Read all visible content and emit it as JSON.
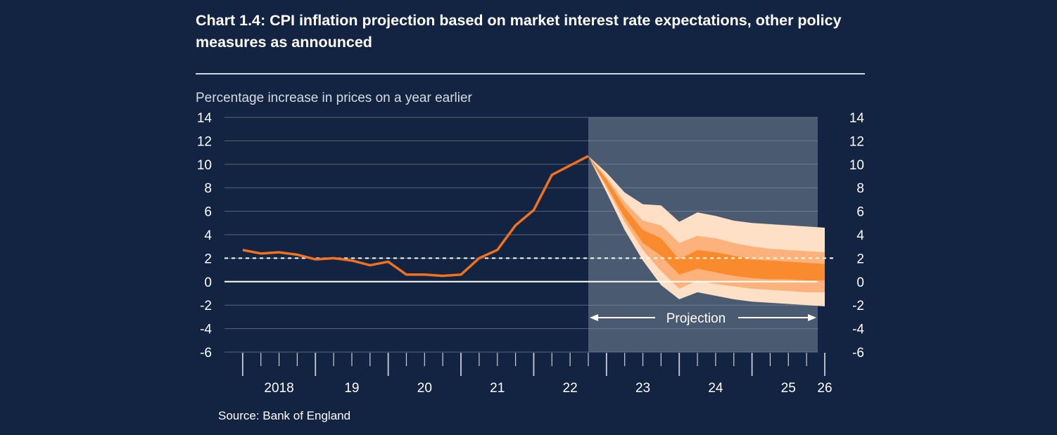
{
  "header": {
    "title": "Chart 1.4: CPI inflation projection based on market interest rate expectations, other policy measures as announced"
  },
  "ylabel": "Percentage increase in prices on a year earlier",
  "source": "Source: Bank of England",
  "chart_data": {
    "type": "area",
    "title": "Chart 1.4: CPI inflation projection based on market interest rate expectations, other policy measures as announced",
    "ylabel": "Percentage increase in prices on a year earlier",
    "xlabel": "",
    "ylim": [
      -6,
      14
    ],
    "y_ticks": [
      14,
      12,
      10,
      8,
      6,
      4,
      2,
      0,
      -2,
      -4,
      -6
    ],
    "x_tick_labels": [
      {
        "label": "2018",
        "x": 2018.5
      },
      {
        "label": "19",
        "x": 2019.5
      },
      {
        "label": "20",
        "x": 2020.5
      },
      {
        "label": "21",
        "x": 2021.5
      },
      {
        "label": "22",
        "x": 2022.5
      },
      {
        "label": "23",
        "x": 2023.5
      },
      {
        "label": "24",
        "x": 2024.5
      },
      {
        "label": "25",
        "x": 2025.5
      },
      {
        "label": "26",
        "x": 2026.0
      }
    ],
    "xlim": [
      2017.75,
      2026.0
    ],
    "inflation_target": 2,
    "projection_start": 2022.75,
    "projection_label": "Projection",
    "colors": {
      "background": "#132442",
      "projection_shade": "#4a5a70",
      "history_line": "#f2711c",
      "band_outer": "#fde0c6",
      "band_mid": "#fcb27a",
      "band_inner": "#f98a2e",
      "band_core": "#f57a0f",
      "grid": "#8b97aa"
    },
    "series": [
      {
        "name": "CPI inflation",
        "x": [
          2018.0,
          2018.25,
          2018.5,
          2018.75,
          2019.0,
          2019.25,
          2019.5,
          2019.75,
          2020.0,
          2020.25,
          2020.5,
          2020.75,
          2021.0,
          2021.25,
          2021.5,
          2021.75,
          2022.0,
          2022.25,
          2022.5,
          2022.75
        ],
        "values": [
          2.7,
          2.4,
          2.5,
          2.3,
          1.9,
          2.0,
          1.8,
          1.4,
          1.7,
          0.6,
          0.6,
          0.5,
          0.6,
          2.0,
          2.7,
          4.8,
          6.1,
          9.1,
          9.9,
          10.7
        ]
      }
    ],
    "fan_x": [
      2022.75,
      2023.0,
      2023.25,
      2023.5,
      2023.75,
      2024.0,
      2024.25,
      2024.5,
      2024.75,
      2025.0,
      2025.25,
      2025.5,
      2025.75,
      2026.0
    ],
    "fan_bands": [
      {
        "upper": [
          10.7,
          9.3,
          7.6,
          6.6,
          6.5,
          5.1,
          5.9,
          5.6,
          5.2,
          5.0,
          4.9,
          4.8,
          4.7,
          4.6
        ],
        "lower": [
          10.7,
          7.6,
          4.4,
          1.8,
          -0.3,
          -1.5,
          -0.9,
          -1.2,
          -1.5,
          -1.7,
          -1.8,
          -1.9,
          -2.0,
          -2.1
        ]
      },
      {
        "upper": [
          10.7,
          8.9,
          6.8,
          5.2,
          4.8,
          3.3,
          3.9,
          3.7,
          3.3,
          3.0,
          2.8,
          2.7,
          2.6,
          2.5
        ],
        "lower": [
          10.7,
          8.0,
          5.1,
          2.7,
          0.9,
          -0.6,
          0.1,
          -0.2,
          -0.4,
          -0.6,
          -0.7,
          -0.8,
          -0.9,
          -0.9
        ]
      },
      {
        "upper": [
          10.7,
          8.7,
          6.3,
          4.4,
          3.7,
          1.9,
          2.7,
          2.5,
          2.2,
          1.9,
          1.8,
          1.7,
          1.6,
          1.5
        ],
        "lower": [
          10.7,
          8.2,
          5.5,
          3.3,
          2.2,
          0.6,
          1.1,
          0.8,
          0.5,
          0.3,
          0.2,
          0.2,
          0.1,
          0.1
        ]
      }
    ]
  }
}
